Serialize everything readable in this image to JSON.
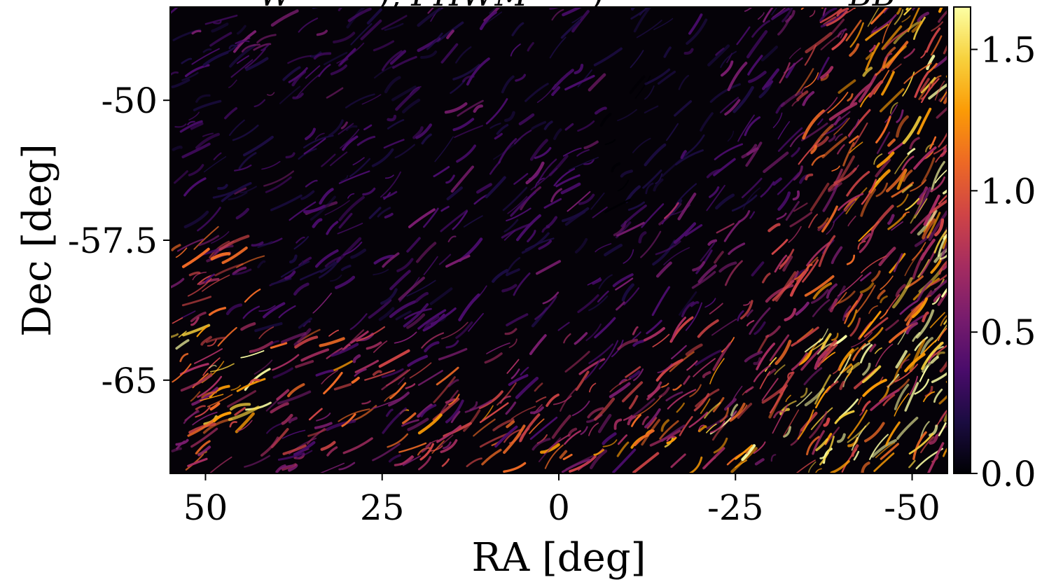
{
  "chart_data": {
    "type": "heatmap",
    "title_fragments": [
      "W",
      "), FHWM",
      ")",
      "BB"
    ],
    "xlabel": "RA [deg]",
    "ylabel": "Dec [deg]",
    "xlim": [
      55,
      -55
    ],
    "ylim": [
      -70,
      -45
    ],
    "x_ticks": [
      50,
      25,
      0,
      -25,
      -50
    ],
    "x_tick_labels": [
      "50",
      "25",
      "0",
      "-25",
      "-50"
    ],
    "y_ticks": [
      -50,
      -57.5,
      -65
    ],
    "y_tick_labels": [
      "-50",
      "-57.5",
      "-65"
    ],
    "colorbar": {
      "colormap": "inferno",
      "range": [
        0.0,
        1.65
      ],
      "ticks": [
        0.0,
        0.5,
        1.0,
        1.5
      ],
      "tick_labels": [
        "0.0",
        "0.5",
        "1.0",
        "1.5"
      ]
    },
    "colormap_stops": [
      "#000004",
      "#1b0c41",
      "#4a0c6b",
      "#781c6d",
      "#a52c60",
      "#cf4446",
      "#ed6925",
      "#fb9b06",
      "#f7d13d",
      "#fcffa4"
    ],
    "grid": false
  }
}
